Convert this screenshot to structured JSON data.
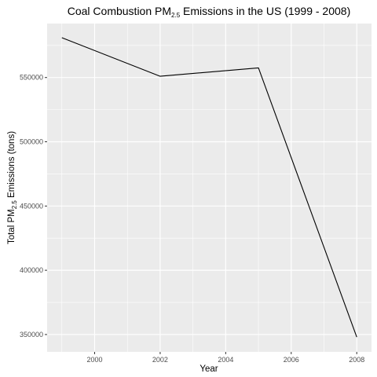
{
  "chart_data": {
    "type": "line",
    "title": {
      "prefix": "Coal Combustion PM",
      "subscript": "2.5",
      "suffix": " Emissions in the US (1999 - 2008)"
    },
    "xlabel": "Year",
    "ylabel": {
      "prefix": "Total PM",
      "subscript": "2.5",
      "suffix": " Emissions (tons)"
    },
    "x": [
      1999,
      2002,
      2005,
      2008
    ],
    "series": [
      {
        "values": [
          581000,
          551000,
          557500,
          348000
        ]
      }
    ],
    "xlim": [
      1998.55,
      2008.45
    ],
    "ylim": [
      336500,
      592000
    ],
    "x_ticks": [
      2000,
      2002,
      2004,
      2006,
      2008
    ],
    "x_tick_labels": [
      "2000",
      "2002",
      "2004",
      "2006",
      "2008"
    ],
    "y_ticks": [
      350000,
      400000,
      450000,
      500000,
      550000
    ],
    "y_tick_labels": [
      "350000",
      "400000",
      "450000",
      "500000",
      "550000"
    ],
    "grid": true,
    "colors": {
      "panel": "#ebebeb",
      "grid": "#ffffff",
      "line": "#000000"
    }
  }
}
